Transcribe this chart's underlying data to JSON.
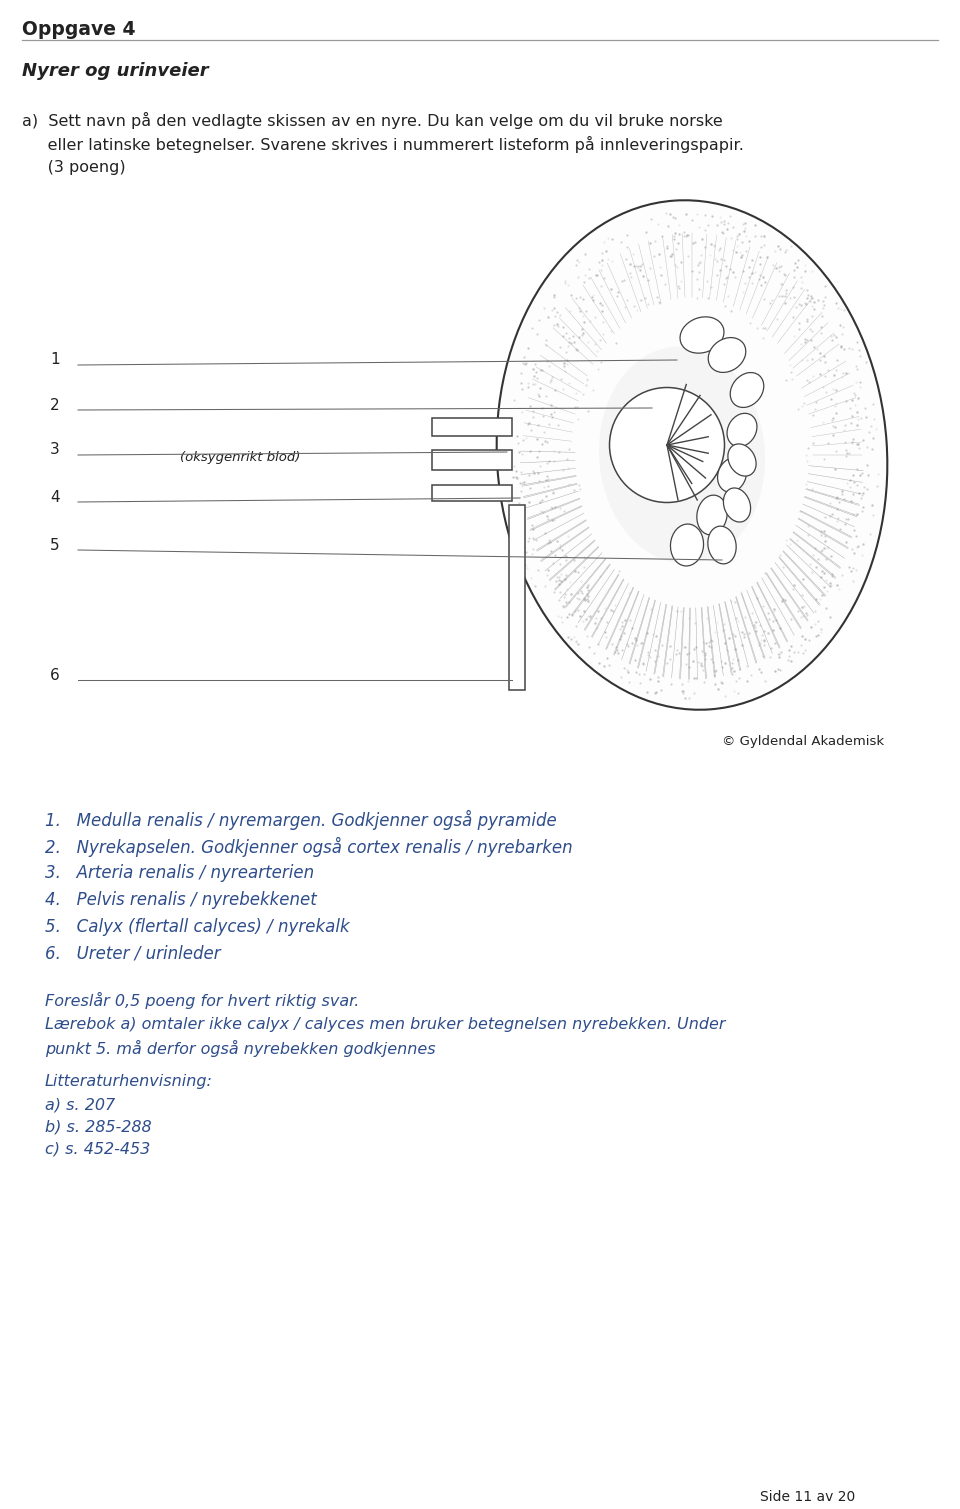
{
  "title": "Oppgave 4",
  "subtitle": "Nyrer og urinveier",
  "qa_line1": "a)  Sett navn på den vedlagte skissen av en nyre. Du kan velge om du vil bruke norske",
  "qa_line2": "     eller latinske betegnelser. Svarene skrives i nummerert listeform på innleveringspapir.",
  "qa_line3": "     (3 poeng)",
  "annotation_label": "(oksygenrikt blod)",
  "copyright": "© Gyldendal Akademisk",
  "answers": [
    "1.   Medulla renalis / nyremargen. Godkjenner også pyramide",
    "2.   Nyrekapselen. Godkjenner også cortex renalis / nyrebarken",
    "3.   Arteria renalis / nyrearterien",
    "4.   Pelvis renalis / nyrebekkenet",
    "5.   Calyx (flertall calyces) / nyrekalk",
    "6.   Ureter / urinleder"
  ],
  "extra_line1": "Foreslår 0,5 poeng for hvert riktig svar.",
  "extra_line2": "Lærebok a) omtaler ikke calyx / calyces men bruker betegnelsen nyrebekken. Under",
  "extra_line3": "punkt 5. må derfor også nyrebekken godkjennes",
  "lit_header": "Litteraturhenvisning:",
  "lit_items": [
    "a) s. 207",
    "b) s. 285-288",
    "c) s. 452-453"
  ],
  "footer": "Side 11 av 20",
  "bg_color": "#ffffff",
  "text_color_black": "#222222",
  "text_color_blue": "#2e4d8a",
  "line_color": "#666666"
}
